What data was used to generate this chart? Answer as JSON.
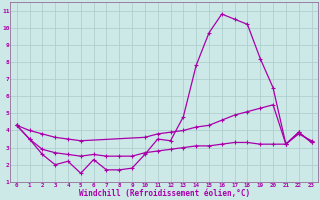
{
  "xlabel": "Windchill (Refroidissement éolien,°C)",
  "xlim": [
    -0.5,
    23.5
  ],
  "ylim": [
    1,
    11.5
  ],
  "xticks": [
    0,
    1,
    2,
    3,
    4,
    5,
    6,
    7,
    8,
    9,
    10,
    11,
    12,
    13,
    14,
    15,
    16,
    17,
    18,
    19,
    20,
    21,
    22,
    23
  ],
  "yticks": [
    1,
    2,
    3,
    4,
    5,
    6,
    7,
    8,
    9,
    10,
    11
  ],
  "bg_color": "#cce9e8",
  "grid_color": "#aacccc",
  "line_color": "#aa00aa",
  "spine_color": "#885588",
  "line1_x": [
    0,
    1,
    2,
    3,
    4,
    5,
    6,
    7,
    8,
    9,
    10,
    11,
    12,
    13,
    14,
    15,
    16,
    17,
    18,
    19,
    20,
    21,
    22,
    23
  ],
  "line1_y": [
    4.3,
    3.5,
    2.6,
    2.0,
    2.2,
    1.5,
    2.3,
    1.7,
    1.7,
    1.8,
    2.6,
    3.5,
    3.4,
    4.8,
    7.8,
    9.7,
    10.8,
    10.5,
    10.2,
    8.2,
    6.5,
    3.2,
    3.9,
    3.3
  ],
  "line2_x": [
    0,
    1,
    2,
    3,
    4,
    5,
    10,
    11,
    12,
    13,
    14,
    15,
    16,
    17,
    18,
    19,
    20,
    21,
    22,
    23
  ],
  "line2_y": [
    4.3,
    4.0,
    3.8,
    3.6,
    3.5,
    3.4,
    3.6,
    3.8,
    3.9,
    4.0,
    4.2,
    4.3,
    4.6,
    4.9,
    5.1,
    5.3,
    5.5,
    3.2,
    3.8,
    3.4
  ],
  "line3_x": [
    0,
    1,
    2,
    3,
    4,
    5,
    6,
    7,
    8,
    9,
    10,
    11,
    12,
    13,
    14,
    15,
    16,
    17,
    18,
    19,
    20,
    21,
    22,
    23
  ],
  "line3_y": [
    4.3,
    3.5,
    2.9,
    2.7,
    2.6,
    2.5,
    2.6,
    2.5,
    2.5,
    2.5,
    2.7,
    2.8,
    2.9,
    3.0,
    3.1,
    3.1,
    3.2,
    3.3,
    3.3,
    3.2,
    3.2,
    3.2,
    3.9,
    3.3
  ]
}
